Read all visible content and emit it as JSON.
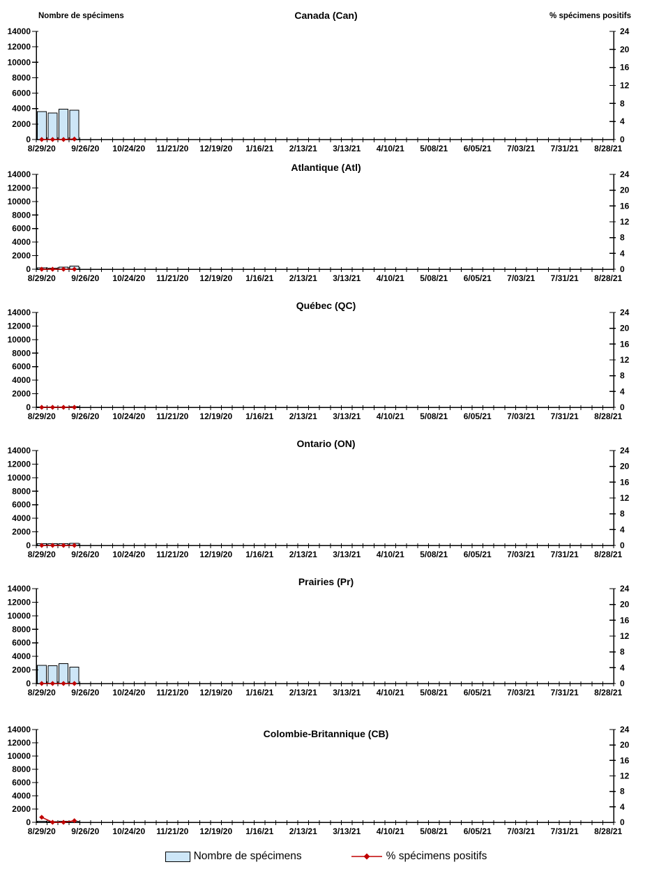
{
  "axis_titles": {
    "left": "Nombre de spécimens",
    "right": "% spécimens positifs"
  },
  "axes": {
    "left_ticks": [
      0,
      2000,
      4000,
      6000,
      8000,
      10000,
      12000,
      14000
    ],
    "right_ticks": [
      0,
      4,
      8,
      12,
      16,
      20,
      24
    ],
    "left_ylim": [
      0,
      14000
    ],
    "right_ylim": [
      0,
      24
    ],
    "weeks_total": 53,
    "x_label_every": 4,
    "x_tick_labels": [
      "8/29/20",
      "9/26/20",
      "10/24/20",
      "11/21/20",
      "12/19/20",
      "1/16/21",
      "2/13/21",
      "3/13/21",
      "4/10/21",
      "5/08/21",
      "6/05/21",
      "7/03/21",
      "7/31/21",
      "8/28/21"
    ]
  },
  "colors": {
    "bar_fill": "#CDE6F7",
    "bar_stroke": "#000000",
    "line": "#C00000",
    "text": "#000000"
  },
  "legend": {
    "items": [
      {
        "label": "Nombre de spécimens",
        "swatch": "bar"
      },
      {
        "label": "% spécimens positifs",
        "swatch": "line-diamond"
      }
    ]
  },
  "chart_data": [
    {
      "type": "combo-bar-line",
      "title": "Canada (Can)",
      "region_code": "Can",
      "x": [
        "8/29/20",
        "9/05/20",
        "9/12/20",
        "9/19/20"
      ],
      "series": [
        {
          "name": "Nombre de spécimens",
          "type": "bar",
          "axis": "left",
          "values": [
            3600,
            3450,
            3950,
            3800
          ]
        },
        {
          "name": "% spécimens positifs",
          "type": "line",
          "axis": "right",
          "values": [
            0,
            0,
            0,
            0.1
          ]
        }
      ]
    },
    {
      "type": "combo-bar-line",
      "title": "Atlantique (Atl)",
      "region_code": "Atl",
      "x": [
        "8/29/20",
        "9/05/20",
        "9/12/20",
        "9/19/20"
      ],
      "series": [
        {
          "name": "Nombre de spécimens",
          "type": "bar",
          "axis": "left",
          "values": [
            200,
            150,
            300,
            450
          ]
        },
        {
          "name": "% spécimens positifs",
          "type": "line",
          "axis": "right",
          "values": [
            0,
            0,
            0,
            0
          ]
        }
      ]
    },
    {
      "type": "combo-bar-line",
      "title": "Québec (QC)",
      "region_code": "QC",
      "x": [
        "8/29/20",
        "9/05/20",
        "9/12/20",
        "9/19/20"
      ],
      "series": [
        {
          "name": "Nombre de spécimens",
          "type": "bar",
          "axis": "left",
          "values": [
            60,
            50,
            60,
            80
          ]
        },
        {
          "name": "% spécimens positifs",
          "type": "line",
          "axis": "right",
          "values": [
            0,
            0,
            0,
            0
          ]
        }
      ]
    },
    {
      "type": "combo-bar-line",
      "title": "Ontario (ON)",
      "region_code": "ON",
      "x": [
        "8/29/20",
        "9/05/20",
        "9/12/20",
        "9/19/20"
      ],
      "series": [
        {
          "name": "Nombre de spécimens",
          "type": "bar",
          "axis": "left",
          "values": [
            280,
            250,
            260,
            300
          ]
        },
        {
          "name": "% spécimens positifs",
          "type": "line",
          "axis": "right",
          "values": [
            0,
            0,
            0,
            0
          ]
        }
      ]
    },
    {
      "type": "combo-bar-line",
      "title": "Prairies (Pr)",
      "region_code": "Pr",
      "x": [
        "8/29/20",
        "9/05/20",
        "9/12/20",
        "9/19/20"
      ],
      "series": [
        {
          "name": "Nombre de spécimens",
          "type": "bar",
          "axis": "left",
          "values": [
            2700,
            2600,
            2950,
            2400
          ]
        },
        {
          "name": "% spécimens positifs",
          "type": "line",
          "axis": "right",
          "values": [
            0,
            0,
            0,
            0
          ]
        }
      ]
    },
    {
      "type": "combo-bar-line",
      "title": "Colombie-Britannique (CB)",
      "region_code": "CB",
      "x": [
        "8/29/20",
        "9/05/20",
        "9/12/20",
        "9/19/20"
      ],
      "series": [
        {
          "name": "Nombre de spécimens",
          "type": "bar",
          "axis": "left",
          "values": [
            150,
            130,
            140,
            170
          ]
        },
        {
          "name": "% spécimens positifs",
          "type": "line",
          "axis": "right",
          "values": [
            1.3,
            0,
            0,
            0.4
          ]
        }
      ]
    }
  ]
}
